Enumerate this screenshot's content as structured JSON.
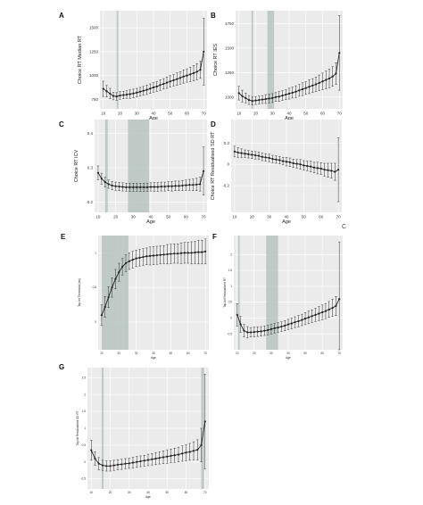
{
  "figure": {
    "stray_label": "C"
  },
  "colors": {
    "panel_bg": "#ebebeb",
    "grid": "#ffffff",
    "band": "#b7c4c0",
    "line": "#222222",
    "error_bar": "#333333"
  },
  "chart_data": [
    {
      "id": "A",
      "letter": "A",
      "type": "line",
      "xlabel": "Age",
      "ylabel": "Choice RT Median RT",
      "xlim": [
        8,
        72
      ],
      "ylim": [
        650,
        1680
      ],
      "xticks": [
        10,
        20,
        30,
        40,
        50,
        60,
        70
      ],
      "yticks": [
        750,
        1000,
        1250,
        1500
      ],
      "grid": true,
      "bands": [
        [
          18,
          19
        ]
      ],
      "x": [
        10,
        12,
        14,
        16,
        18,
        20,
        22,
        24,
        26,
        28,
        30,
        32,
        34,
        36,
        38,
        40,
        42,
        44,
        46,
        48,
        50,
        52,
        54,
        56,
        58,
        60,
        62,
        64,
        66,
        68,
        70
      ],
      "y": [
        860,
        835,
        810,
        785,
        780,
        790,
        795,
        800,
        805,
        812,
        820,
        830,
        840,
        850,
        862,
        875,
        885,
        900,
        912,
        925,
        938,
        950,
        962,
        975,
        990,
        1000,
        1012,
        1025,
        1040,
        1060,
        1250
      ],
      "err": [
        80,
        60,
        55,
        40,
        40,
        40,
        40,
        40,
        45,
        45,
        45,
        45,
        45,
        50,
        50,
        50,
        50,
        55,
        55,
        60,
        60,
        60,
        65,
        65,
        70,
        70,
        75,
        80,
        85,
        90,
        350
      ]
    },
    {
      "id": "B",
      "letter": "B",
      "type": "line",
      "xlabel": "Age",
      "ylabel": "Choice RT IES",
      "xlim": [
        8,
        72
      ],
      "ylim": [
        880,
        1880
      ],
      "xticks": [
        10,
        20,
        30,
        40,
        50,
        60,
        70
      ],
      "yticks": [
        1000,
        1250,
        1500,
        1750
      ],
      "grid": true,
      "bands": [
        [
          17.5,
          18.5
        ],
        [
          27,
          31
        ]
      ],
      "x": [
        10,
        12,
        14,
        16,
        18,
        20,
        22,
        24,
        26,
        28,
        30,
        32,
        34,
        36,
        38,
        40,
        42,
        44,
        46,
        48,
        50,
        52,
        54,
        56,
        58,
        60,
        62,
        64,
        66,
        68,
        70
      ],
      "y": [
        1040,
        1010,
        990,
        970,
        960,
        965,
        970,
        975,
        980,
        985,
        990,
        1000,
        1005,
        1015,
        1025,
        1035,
        1045,
        1055,
        1068,
        1080,
        1092,
        1105,
        1118,
        1130,
        1145,
        1160,
        1175,
        1190,
        1210,
        1240,
        1450
      ],
      "err": [
        70,
        60,
        50,
        45,
        40,
        40,
        40,
        40,
        45,
        45,
        45,
        45,
        50,
        50,
        50,
        55,
        55,
        60,
        60,
        65,
        65,
        70,
        70,
        75,
        80,
        85,
        90,
        95,
        100,
        110,
        380
      ]
    },
    {
      "id": "C",
      "letter": "C",
      "type": "line",
      "xlabel": "Age",
      "ylabel": "Choice RT ICV",
      "xlim": [
        8,
        72
      ],
      "ylim": [
        0.17,
        0.44
      ],
      "xticks": [
        10,
        20,
        30,
        40,
        50,
        60,
        70
      ],
      "yticks": [
        0.2,
        0.3,
        0.4
      ],
      "grid": true,
      "bands": [
        [
          14,
          15.5
        ],
        [
          27,
          39
        ]
      ],
      "x": [
        10,
        12,
        14,
        16,
        18,
        20,
        22,
        24,
        26,
        28,
        30,
        32,
        34,
        36,
        38,
        40,
        42,
        44,
        46,
        48,
        50,
        52,
        54,
        56,
        58,
        60,
        62,
        64,
        66,
        68,
        70
      ],
      "y": [
        0.285,
        0.268,
        0.258,
        0.252,
        0.248,
        0.246,
        0.245,
        0.244,
        0.243,
        0.243,
        0.243,
        0.243,
        0.243,
        0.243,
        0.243,
        0.244,
        0.244,
        0.244,
        0.245,
        0.245,
        0.246,
        0.246,
        0.247,
        0.247,
        0.248,
        0.249,
        0.25,
        0.25,
        0.251,
        0.252,
        0.29
      ],
      "err": [
        0.02,
        0.016,
        0.014,
        0.012,
        0.012,
        0.012,
        0.012,
        0.012,
        0.012,
        0.012,
        0.012,
        0.012,
        0.012,
        0.012,
        0.012,
        0.012,
        0.013,
        0.013,
        0.013,
        0.013,
        0.013,
        0.014,
        0.014,
        0.014,
        0.015,
        0.015,
        0.016,
        0.017,
        0.018,
        0.02,
        0.07
      ]
    },
    {
      "id": "D",
      "letter": "D",
      "type": "line",
      "xlabel": "Age",
      "ylabel": "Choice RT Residualised SD RT",
      "xlim": [
        8,
        72
      ],
      "ylim": [
        -0.45,
        0.42
      ],
      "xticks": [
        10,
        20,
        30,
        40,
        50,
        60,
        70
      ],
      "yticks": [
        -0.2,
        0.0,
        0.2
      ],
      "grid": true,
      "bands": [],
      "x": [
        10,
        12,
        14,
        16,
        18,
        20,
        22,
        24,
        26,
        28,
        30,
        32,
        34,
        36,
        38,
        40,
        42,
        44,
        46,
        48,
        50,
        52,
        54,
        56,
        58,
        60,
        62,
        64,
        66,
        68,
        70
      ],
      "y": [
        0.12,
        0.11,
        0.105,
        0.1,
        0.095,
        0.09,
        0.085,
        0.08,
        0.07,
        0.065,
        0.06,
        0.05,
        0.045,
        0.04,
        0.03,
        0.025,
        0.02,
        0.01,
        0.005,
        0.0,
        -0.01,
        -0.015,
        -0.02,
        -0.03,
        -0.035,
        -0.04,
        -0.05,
        -0.055,
        -0.06,
        -0.07,
        -0.05
      ],
      "err": [
        0.05,
        0.045,
        0.04,
        0.035,
        0.035,
        0.035,
        0.035,
        0.035,
        0.035,
        0.035,
        0.035,
        0.035,
        0.035,
        0.035,
        0.035,
        0.04,
        0.04,
        0.04,
        0.04,
        0.045,
        0.045,
        0.045,
        0.05,
        0.05,
        0.055,
        0.055,
        0.06,
        0.065,
        0.07,
        0.08,
        0.3
      ]
    },
    {
      "id": "E",
      "letter": "E",
      "type": "line",
      "xlabel": "Age",
      "ylabel": "Tap-hit Threshold (ms)",
      "xlim": [
        8,
        72
      ],
      "ylim": [
        -0.4,
        1.25
      ],
      "xticks": [
        10,
        20,
        30,
        40,
        50,
        60,
        70
      ],
      "yticks": [
        0.0,
        0.5,
        1.0
      ],
      "grid": true,
      "bands": [
        [
          10,
          22
        ],
        [
          22,
          25.5
        ]
      ],
      "x": [
        10,
        12,
        14,
        16,
        18,
        20,
        22,
        24,
        26,
        28,
        30,
        32,
        34,
        36,
        38,
        40,
        42,
        44,
        46,
        48,
        50,
        52,
        54,
        56,
        58,
        60,
        62,
        64,
        66,
        68,
        70
      ],
      "y": [
        0.1,
        0.22,
        0.36,
        0.5,
        0.62,
        0.72,
        0.8,
        0.85,
        0.88,
        0.9,
        0.92,
        0.93,
        0.94,
        0.95,
        0.955,
        0.96,
        0.965,
        0.97,
        0.975,
        0.98,
        0.985,
        0.99,
        0.99,
        0.995,
        1.0,
        1.0,
        1.0,
        1.005,
        1.01,
        1.01,
        1.02
      ],
      "err": [
        0.15,
        0.15,
        0.15,
        0.14,
        0.14,
        0.13,
        0.12,
        0.12,
        0.12,
        0.12,
        0.12,
        0.12,
        0.12,
        0.12,
        0.13,
        0.13,
        0.13,
        0.13,
        0.13,
        0.14,
        0.14,
        0.14,
        0.14,
        0.15,
        0.15,
        0.15,
        0.16,
        0.16,
        0.17,
        0.17,
        0.18
      ]
    },
    {
      "id": "F",
      "letter": "F",
      "type": "line",
      "xlabel": "Age",
      "ylabel": "Tap-hit Residualised RT",
      "xlim": [
        8,
        72
      ],
      "ylim": [
        -1.0,
        2.6
      ],
      "xticks": [
        10,
        20,
        30,
        40,
        50,
        60,
        70
      ],
      "yticks": [
        -0.5,
        0.0,
        0.5,
        1.0,
        1.5,
        2.0
      ],
      "grid": true,
      "bands": [
        [
          10.5,
          11.5
        ],
        [
          27,
          34
        ]
      ],
      "x": [
        10,
        12,
        14,
        16,
        18,
        20,
        22,
        24,
        26,
        28,
        30,
        32,
        34,
        36,
        38,
        40,
        42,
        44,
        46,
        48,
        50,
        52,
        54,
        56,
        58,
        60,
        62,
        64,
        66,
        68,
        70
      ],
      "y": [
        0.1,
        -0.2,
        -0.4,
        -0.45,
        -0.45,
        -0.44,
        -0.43,
        -0.42,
        -0.4,
        -0.38,
        -0.35,
        -0.32,
        -0.3,
        -0.27,
        -0.24,
        -0.2,
        -0.17,
        -0.13,
        -0.1,
        -0.06,
        -0.02,
        0.02,
        0.06,
        0.1,
        0.14,
        0.18,
        0.22,
        0.27,
        0.32,
        0.38,
        0.6
      ],
      "err": [
        0.35,
        0.25,
        0.2,
        0.18,
        0.15,
        0.15,
        0.15,
        0.15,
        0.15,
        0.15,
        0.15,
        0.15,
        0.15,
        0.15,
        0.16,
        0.16,
        0.17,
        0.17,
        0.18,
        0.18,
        0.19,
        0.2,
        0.2,
        0.21,
        0.22,
        0.23,
        0.24,
        0.25,
        0.27,
        0.3,
        1.8
      ]
    },
    {
      "id": "G",
      "letter": "G",
      "type": "line",
      "xlabel": "Age",
      "ylabel": "Tap-hit Residualised SD RT",
      "xlim": [
        8,
        72
      ],
      "ylim": [
        -0.8,
        2.8
      ],
      "xticks": [
        10,
        20,
        30,
        40,
        50,
        60,
        70
      ],
      "yticks": [
        -0.5,
        0.0,
        0.5,
        1.0,
        1.5,
        2.0,
        2.5
      ],
      "grid": true,
      "bands": [
        [
          15.5,
          16.5
        ],
        [
          68,
          69.5
        ]
      ],
      "x": [
        10,
        12,
        14,
        16,
        18,
        20,
        22,
        24,
        26,
        28,
        30,
        32,
        34,
        36,
        38,
        40,
        42,
        44,
        46,
        48,
        50,
        52,
        54,
        56,
        58,
        60,
        62,
        64,
        66,
        68,
        70
      ],
      "y": [
        0.35,
        0.1,
        -0.05,
        -0.1,
        -0.12,
        -0.12,
        -0.1,
        -0.08,
        -0.07,
        -0.05,
        -0.04,
        -0.02,
        0.0,
        0.02,
        0.04,
        0.06,
        0.08,
        0.1,
        0.12,
        0.14,
        0.16,
        0.18,
        0.2,
        0.22,
        0.25,
        0.28,
        0.3,
        0.33,
        0.36,
        0.5,
        1.2
      ],
      "err": [
        0.3,
        0.2,
        0.18,
        0.15,
        0.15,
        0.15,
        0.15,
        0.15,
        0.15,
        0.15,
        0.15,
        0.16,
        0.16,
        0.16,
        0.16,
        0.17,
        0.17,
        0.18,
        0.18,
        0.19,
        0.2,
        0.2,
        0.21,
        0.22,
        0.23,
        0.24,
        0.25,
        0.27,
        0.3,
        0.5,
        1.4
      ]
    }
  ]
}
